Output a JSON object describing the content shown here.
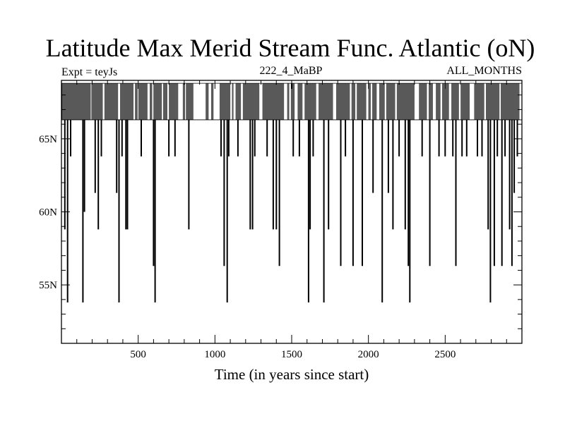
{
  "chart_data": {
    "type": "line",
    "title": "Latitude Max Merid Stream Func. Atlantic (oN)",
    "left_label": "Expt = teyJs",
    "center_label": "222_4_MaBP",
    "right_label": "ALL_MONTHS",
    "xlabel": "Time (in years since start)",
    "ylabel": "",
    "xlim": [
      0,
      3000
    ],
    "ylim": [
      51,
      69
    ],
    "x_ticks": [
      500,
      1000,
      1500,
      2000,
      2500
    ],
    "x_tick_labels": [
      "500",
      "1000",
      "1500",
      "2000",
      "2500"
    ],
    "y_ticks": [
      55,
      60,
      65
    ],
    "y_tick_labels": [
      "55N",
      "60N",
      "65N"
    ],
    "grid": false,
    "baseline_values": [
      68.8,
      66.3
    ],
    "series": [
      {
        "values": [
          [
            22,
            58.8
          ],
          [
            40,
            53.8
          ],
          [
            60,
            63.8
          ],
          [
            140,
            53.8
          ],
          [
            150,
            60.0
          ],
          [
            220,
            61.3
          ],
          [
            240,
            58.8
          ],
          [
            260,
            63.8
          ],
          [
            360,
            61.3
          ],
          [
            375,
            53.8
          ],
          [
            395,
            63.8
          ],
          [
            420,
            58.8
          ],
          [
            430,
            58.8
          ],
          [
            520,
            63.8
          ],
          [
            600,
            56.3
          ],
          [
            610,
            53.8
          ],
          [
            700,
            63.8
          ],
          [
            740,
            63.8
          ],
          [
            830,
            58.8
          ],
          [
            1040,
            63.8
          ],
          [
            1060,
            56.3
          ],
          [
            1080,
            53.8
          ],
          [
            1090,
            63.8
          ],
          [
            1150,
            63.8
          ],
          [
            1230,
            58.8
          ],
          [
            1245,
            58.8
          ],
          [
            1260,
            63.8
          ],
          [
            1340,
            63.8
          ],
          [
            1380,
            58.8
          ],
          [
            1400,
            58.8
          ],
          [
            1420,
            56.3
          ],
          [
            1510,
            63.8
          ],
          [
            1550,
            63.8
          ],
          [
            1610,
            53.8
          ],
          [
            1620,
            58.8
          ],
          [
            1640,
            63.8
          ],
          [
            1710,
            53.8
          ],
          [
            1740,
            58.8
          ],
          [
            1820,
            56.3
          ],
          [
            1850,
            63.8
          ],
          [
            1900,
            56.3
          ],
          [
            1960,
            56.3
          ],
          [
            2030,
            61.3
          ],
          [
            2090,
            53.8
          ],
          [
            2130,
            61.3
          ],
          [
            2160,
            58.8
          ],
          [
            2200,
            63.8
          ],
          [
            2240,
            58.8
          ],
          [
            2260,
            56.3
          ],
          [
            2270,
            53.8
          ],
          [
            2350,
            63.8
          ],
          [
            2400,
            56.3
          ],
          [
            2460,
            63.8
          ],
          [
            2500,
            63.8
          ],
          [
            2550,
            63.8
          ],
          [
            2570,
            56.3
          ],
          [
            2610,
            63.8
          ],
          [
            2640,
            63.8
          ],
          [
            2710,
            63.8
          ],
          [
            2740,
            63.8
          ],
          [
            2780,
            58.8
          ],
          [
            2795,
            53.8
          ],
          [
            2820,
            56.3
          ],
          [
            2840,
            63.8
          ],
          [
            2870,
            56.3
          ],
          [
            2890,
            63.8
          ],
          [
            2920,
            58.8
          ],
          [
            2935,
            56.3
          ],
          [
            2950,
            61.3
          ],
          [
            2970,
            63.8
          ]
        ]
      }
    ]
  }
}
